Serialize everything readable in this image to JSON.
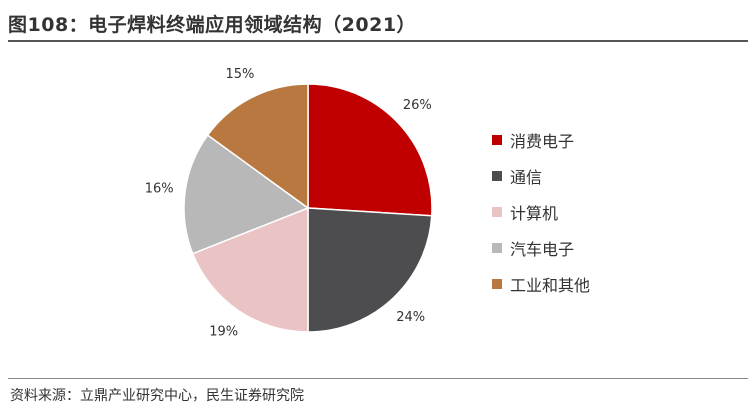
{
  "header": {
    "title": "图108：电子焊料终端应用领域结构（2021）"
  },
  "footer": {
    "source": "资料来源：立鼎产业研究中心，民生证券研究院"
  },
  "chart_data": {
    "type": "pie",
    "title": "图108：电子焊料终端应用领域结构（2021）",
    "unit": "%",
    "start_angle_deg": 0,
    "direction": "clockwise",
    "legend_position": "right",
    "slices": [
      {
        "label": "消费电子",
        "value": 26,
        "value_label": "26%",
        "color": "#C00000"
      },
      {
        "label": "通信",
        "value": 24,
        "value_label": "24%",
        "color": "#4D4D4F"
      },
      {
        "label": "计算机",
        "value": 19,
        "value_label": "19%",
        "color": "#EAC4C4"
      },
      {
        "label": "汽车电子",
        "value": 16,
        "value_label": "16%",
        "color": "#B8B8B8"
      },
      {
        "label": "工业和其他",
        "value": 15,
        "value_label": "15%",
        "color": "#B87840"
      }
    ]
  }
}
